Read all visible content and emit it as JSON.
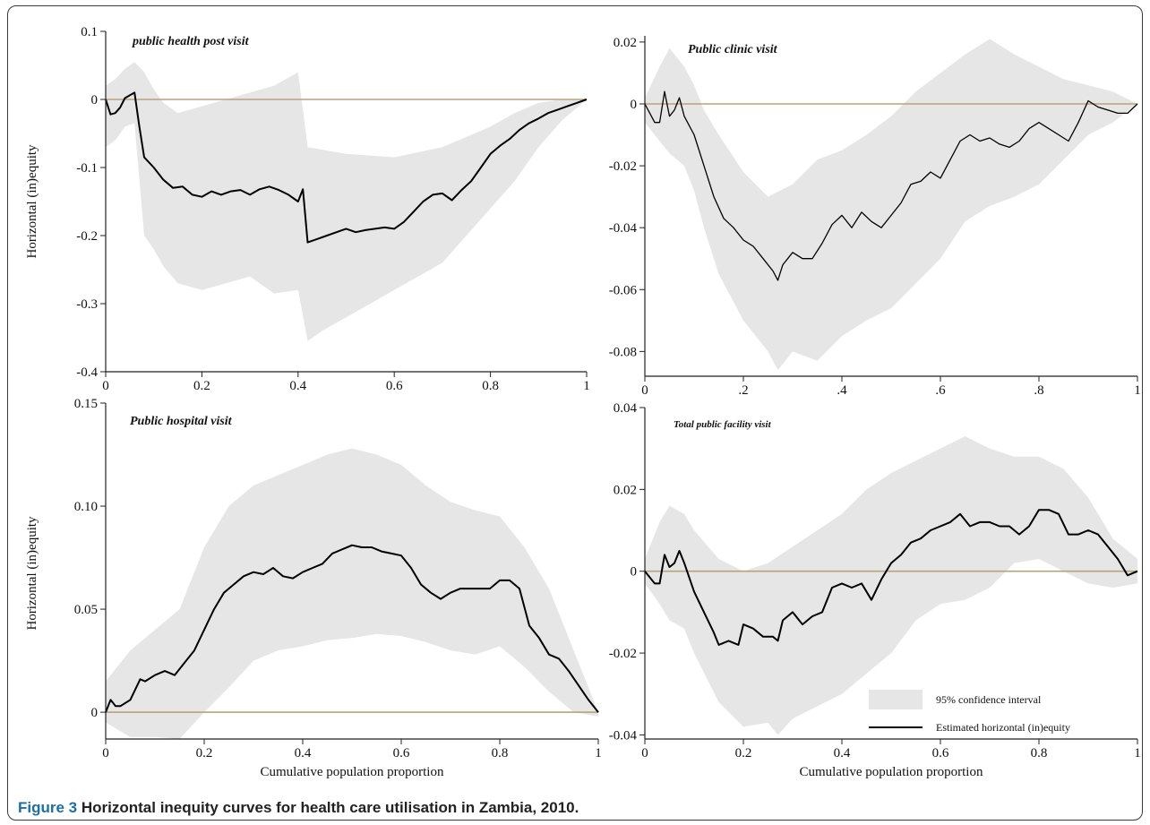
{
  "caption": {
    "label": "Figure 3",
    "text": "Horizontal inequity curves for health care utilisation in Zambia, 2010."
  },
  "colors": {
    "band": "#e6e6e6",
    "line": "#000000",
    "zero_line": "#b5a37a",
    "axis": "#222222",
    "caption_accent": "#1a6fa8"
  },
  "legend": {
    "band_label": "95% confidence interval",
    "line_label": "Estimated horizontal (in)equity",
    "placement": "bottom-right of panel 4"
  },
  "chart_data": [
    {
      "type": "line",
      "panel": "top-left",
      "title": "public health post visit",
      "xlabel": "",
      "ylabel": "Horizontal (in)equity",
      "xlim": [
        0,
        1
      ],
      "ylim": [
        -0.4,
        0.1
      ],
      "xticks": [
        "0",
        "0.2",
        "0.4",
        "0.6",
        "0.8",
        "1"
      ],
      "xtick_values": [
        0,
        0.2,
        0.4,
        0.6,
        0.8,
        1
      ],
      "yticks": [
        "-0.4",
        "-0.3",
        "-0.2",
        "-0.1",
        "0",
        "0.1"
      ],
      "ytick_values": [
        -0.4,
        -0.3,
        -0.2,
        -0.1,
        0,
        0.1
      ],
      "zero_line": true,
      "series": [
        {
          "role": "estimate",
          "x": [
            0,
            0.01,
            0.02,
            0.03,
            0.04,
            0.06,
            0.07,
            0.08,
            0.1,
            0.12,
            0.14,
            0.16,
            0.18,
            0.2,
            0.22,
            0.24,
            0.26,
            0.28,
            0.3,
            0.32,
            0.34,
            0.36,
            0.38,
            0.4,
            0.41,
            0.42,
            0.44,
            0.46,
            0.48,
            0.5,
            0.52,
            0.54,
            0.56,
            0.58,
            0.6,
            0.62,
            0.64,
            0.66,
            0.68,
            0.7,
            0.72,
            0.74,
            0.76,
            0.78,
            0.8,
            0.82,
            0.84,
            0.86,
            0.88,
            0.9,
            0.92,
            0.94,
            0.96,
            0.98,
            1.0
          ],
          "y": [
            0,
            -0.022,
            -0.02,
            -0.012,
            0.002,
            0.01,
            -0.04,
            -0.085,
            -0.1,
            -0.118,
            -0.13,
            -0.128,
            -0.14,
            -0.143,
            -0.135,
            -0.14,
            -0.135,
            -0.133,
            -0.14,
            -0.132,
            -0.128,
            -0.133,
            -0.14,
            -0.15,
            -0.132,
            -0.21,
            -0.205,
            -0.2,
            -0.195,
            -0.19,
            -0.195,
            -0.192,
            -0.19,
            -0.188,
            -0.19,
            -0.18,
            -0.165,
            -0.15,
            -0.14,
            -0.138,
            -0.148,
            -0.133,
            -0.12,
            -0.1,
            -0.08,
            -0.068,
            -0.058,
            -0.045,
            -0.035,
            -0.028,
            -0.02,
            -0.015,
            -0.01,
            -0.005,
            0
          ]
        },
        {
          "role": "ci_upper",
          "x": [
            0,
            0.02,
            0.04,
            0.06,
            0.08,
            0.1,
            0.12,
            0.15,
            0.2,
            0.25,
            0.3,
            0.35,
            0.4,
            0.42,
            0.5,
            0.6,
            0.7,
            0.8,
            0.85,
            0.9,
            0.95,
            1.0
          ],
          "y": [
            0.02,
            0.03,
            0.045,
            0.055,
            0.04,
            0.015,
            -0.005,
            -0.02,
            -0.01,
            0.0,
            0.01,
            0.02,
            0.04,
            -0.07,
            -0.08,
            -0.085,
            -0.07,
            -0.04,
            -0.02,
            -0.005,
            0.0,
            0
          ]
        },
        {
          "role": "ci_lower",
          "x": [
            0,
            0.02,
            0.04,
            0.06,
            0.08,
            0.1,
            0.12,
            0.15,
            0.2,
            0.25,
            0.3,
            0.35,
            0.4,
            0.42,
            0.45,
            0.5,
            0.55,
            0.6,
            0.7,
            0.8,
            0.85,
            0.9,
            0.95,
            1.0
          ],
          "y": [
            -0.07,
            -0.06,
            -0.04,
            -0.035,
            -0.2,
            -0.22,
            -0.245,
            -0.27,
            -0.28,
            -0.27,
            -0.26,
            -0.285,
            -0.28,
            -0.355,
            -0.34,
            -0.32,
            -0.3,
            -0.28,
            -0.24,
            -0.16,
            -0.12,
            -0.07,
            -0.03,
            0
          ]
        }
      ]
    },
    {
      "type": "line",
      "panel": "top-right",
      "title": "Public clinic visit",
      "xlabel": "",
      "ylabel": "",
      "xlim": [
        0,
        1
      ],
      "ylim": [
        -0.088,
        0.022
      ],
      "xticks": [
        "0",
        ".2",
        ".4",
        ".6",
        ".8",
        "1"
      ],
      "xtick_values": [
        0,
        0.2,
        0.4,
        0.6,
        0.8,
        1
      ],
      "yticks": [
        "-0.08",
        "-0.06",
        "-0.04",
        "-0.02",
        "0",
        "0.02"
      ],
      "ytick_values": [
        -0.08,
        -0.06,
        -0.04,
        -0.02,
        0,
        0.02
      ],
      "zero_line": true,
      "series": [
        {
          "role": "estimate",
          "x": [
            0,
            0.02,
            0.03,
            0.04,
            0.05,
            0.06,
            0.07,
            0.08,
            0.1,
            0.12,
            0.14,
            0.16,
            0.18,
            0.2,
            0.22,
            0.24,
            0.26,
            0.27,
            0.28,
            0.3,
            0.32,
            0.34,
            0.36,
            0.38,
            0.4,
            0.42,
            0.44,
            0.46,
            0.48,
            0.5,
            0.52,
            0.54,
            0.56,
            0.58,
            0.6,
            0.62,
            0.64,
            0.66,
            0.68,
            0.7,
            0.72,
            0.74,
            0.76,
            0.78,
            0.8,
            0.82,
            0.84,
            0.86,
            0.88,
            0.9,
            0.92,
            0.94,
            0.96,
            0.98,
            1.0
          ],
          "y": [
            0,
            -0.006,
            -0.006,
            0.004,
            -0.004,
            -0.002,
            0.002,
            -0.004,
            -0.01,
            -0.02,
            -0.03,
            -0.037,
            -0.04,
            -0.044,
            -0.046,
            -0.05,
            -0.054,
            -0.057,
            -0.052,
            -0.048,
            -0.05,
            -0.05,
            -0.045,
            -0.039,
            -0.036,
            -0.04,
            -0.035,
            -0.038,
            -0.04,
            -0.036,
            -0.032,
            -0.026,
            -0.025,
            -0.022,
            -0.024,
            -0.018,
            -0.012,
            -0.01,
            -0.012,
            -0.011,
            -0.013,
            -0.014,
            -0.012,
            -0.008,
            -0.006,
            -0.008,
            -0.01,
            -0.012,
            -0.006,
            0.001,
            -0.001,
            -0.002,
            -0.003,
            -0.003,
            0
          ]
        },
        {
          "role": "ci_upper",
          "x": [
            0,
            0.03,
            0.05,
            0.08,
            0.1,
            0.12,
            0.15,
            0.2,
            0.25,
            0.3,
            0.35,
            0.4,
            0.45,
            0.5,
            0.55,
            0.6,
            0.65,
            0.7,
            0.75,
            0.8,
            0.85,
            0.9,
            0.95,
            1.0
          ],
          "y": [
            0.002,
            0.012,
            0.018,
            0.012,
            0.006,
            -0.002,
            -0.01,
            -0.022,
            -0.03,
            -0.026,
            -0.018,
            -0.015,
            -0.01,
            -0.004,
            0.004,
            0.01,
            0.016,
            0.021,
            0.016,
            0.012,
            0.008,
            0.006,
            0.004,
            0
          ]
        },
        {
          "role": "ci_lower",
          "x": [
            0,
            0.03,
            0.05,
            0.08,
            0.1,
            0.12,
            0.15,
            0.2,
            0.25,
            0.27,
            0.3,
            0.35,
            0.4,
            0.45,
            0.5,
            0.55,
            0.6,
            0.65,
            0.7,
            0.75,
            0.8,
            0.85,
            0.9,
            0.95,
            1.0
          ],
          "y": [
            -0.006,
            -0.012,
            -0.016,
            -0.02,
            -0.028,
            -0.04,
            -0.055,
            -0.07,
            -0.08,
            -0.086,
            -0.08,
            -0.083,
            -0.075,
            -0.07,
            -0.066,
            -0.058,
            -0.05,
            -0.038,
            -0.033,
            -0.03,
            -0.026,
            -0.018,
            -0.01,
            -0.006,
            0
          ]
        }
      ]
    },
    {
      "type": "line",
      "panel": "bottom-left",
      "title": "Public hospital visit",
      "xlabel": "Cumulative population proportion",
      "ylabel": "Horizontal (in)equity",
      "xlim": [
        0,
        1
      ],
      "ylim": [
        -0.013,
        0.15
      ],
      "xticks": [
        "0",
        "0.2",
        "0.4",
        "0.6",
        "0.8",
        "1"
      ],
      "xtick_values": [
        0,
        0.2,
        0.4,
        0.6,
        0.8,
        1
      ],
      "yticks": [
        "0",
        "0.05",
        "0.10",
        "0.15"
      ],
      "ytick_values": [
        0,
        0.05,
        0.1,
        0.15
      ],
      "zero_line": true,
      "series": [
        {
          "role": "estimate",
          "x": [
            0,
            0.01,
            0.02,
            0.03,
            0.05,
            0.07,
            0.08,
            0.1,
            0.12,
            0.14,
            0.16,
            0.18,
            0.2,
            0.22,
            0.24,
            0.26,
            0.28,
            0.3,
            0.32,
            0.34,
            0.36,
            0.38,
            0.4,
            0.42,
            0.44,
            0.46,
            0.48,
            0.5,
            0.52,
            0.54,
            0.56,
            0.58,
            0.6,
            0.62,
            0.64,
            0.66,
            0.68,
            0.7,
            0.72,
            0.74,
            0.76,
            0.78,
            0.8,
            0.82,
            0.84,
            0.86,
            0.88,
            0.9,
            0.92,
            0.94,
            0.96,
            0.98,
            1.0
          ],
          "y": [
            0,
            0.006,
            0.003,
            0.003,
            0.006,
            0.016,
            0.015,
            0.018,
            0.02,
            0.018,
            0.024,
            0.03,
            0.04,
            0.05,
            0.058,
            0.062,
            0.066,
            0.068,
            0.067,
            0.07,
            0.066,
            0.065,
            0.068,
            0.07,
            0.072,
            0.077,
            0.079,
            0.081,
            0.08,
            0.08,
            0.078,
            0.077,
            0.076,
            0.07,
            0.062,
            0.058,
            0.055,
            0.058,
            0.06,
            0.06,
            0.06,
            0.06,
            0.064,
            0.064,
            0.06,
            0.042,
            0.036,
            0.028,
            0.026,
            0.02,
            0.013,
            0.006,
            0
          ]
        },
        {
          "role": "ci_upper",
          "x": [
            0,
            0.05,
            0.1,
            0.15,
            0.2,
            0.25,
            0.3,
            0.35,
            0.4,
            0.45,
            0.5,
            0.55,
            0.6,
            0.65,
            0.7,
            0.75,
            0.8,
            0.85,
            0.9,
            0.95,
            1.0
          ],
          "y": [
            0.015,
            0.03,
            0.04,
            0.05,
            0.08,
            0.1,
            0.11,
            0.115,
            0.12,
            0.125,
            0.128,
            0.125,
            0.12,
            0.11,
            0.102,
            0.098,
            0.095,
            0.08,
            0.06,
            0.03,
            0
          ]
        },
        {
          "role": "ci_lower",
          "x": [
            0,
            0.05,
            0.1,
            0.15,
            0.2,
            0.25,
            0.3,
            0.35,
            0.4,
            0.45,
            0.5,
            0.55,
            0.6,
            0.65,
            0.7,
            0.75,
            0.8,
            0.85,
            0.9,
            0.95,
            1.0
          ],
          "y": [
            -0.005,
            -0.012,
            -0.012,
            -0.013,
            0.0,
            0.012,
            0.025,
            0.03,
            0.032,
            0.035,
            0.036,
            0.038,
            0.037,
            0.034,
            0.03,
            0.028,
            0.032,
            0.022,
            0.01,
            0.0,
            -0.002
          ]
        }
      ]
    },
    {
      "type": "line",
      "panel": "bottom-right",
      "title": "Total public facility visit",
      "xlabel": "Cumulative population proportion",
      "ylabel": "",
      "xlim": [
        0,
        1
      ],
      "ylim": [
        -0.041,
        0.04
      ],
      "xticks": [
        "0",
        "0.2",
        "0.4",
        "0.6",
        "0.8",
        "1"
      ],
      "xtick_values": [
        0,
        0.2,
        0.4,
        0.6,
        0.8,
        1
      ],
      "yticks": [
        "-0.04",
        "-0.02",
        "0",
        "0.02",
        "0.04"
      ],
      "ytick_values": [
        -0.04,
        -0.02,
        0,
        0.02,
        0.04
      ],
      "zero_line": true,
      "series": [
        {
          "role": "estimate",
          "x": [
            0,
            0.02,
            0.03,
            0.04,
            0.05,
            0.06,
            0.07,
            0.08,
            0.1,
            0.12,
            0.14,
            0.15,
            0.17,
            0.19,
            0.2,
            0.22,
            0.24,
            0.26,
            0.27,
            0.28,
            0.3,
            0.32,
            0.34,
            0.36,
            0.38,
            0.4,
            0.42,
            0.44,
            0.46,
            0.48,
            0.5,
            0.52,
            0.54,
            0.56,
            0.58,
            0.6,
            0.62,
            0.64,
            0.66,
            0.68,
            0.7,
            0.72,
            0.74,
            0.76,
            0.78,
            0.8,
            0.82,
            0.84,
            0.86,
            0.88,
            0.9,
            0.92,
            0.94,
            0.96,
            0.98,
            1.0
          ],
          "y": [
            0,
            -0.003,
            -0.003,
            0.004,
            0.001,
            0.002,
            0.005,
            0.002,
            -0.005,
            -0.01,
            -0.015,
            -0.018,
            -0.017,
            -0.018,
            -0.013,
            -0.014,
            -0.016,
            -0.016,
            -0.017,
            -0.012,
            -0.01,
            -0.013,
            -0.011,
            -0.01,
            -0.004,
            -0.003,
            -0.004,
            -0.003,
            -0.007,
            -0.002,
            0.002,
            0.004,
            0.007,
            0.008,
            0.01,
            0.011,
            0.012,
            0.014,
            0.011,
            0.012,
            0.012,
            0.011,
            0.011,
            0.009,
            0.011,
            0.015,
            0.015,
            0.014,
            0.009,
            0.009,
            0.01,
            0.009,
            0.006,
            0.003,
            -0.001,
            0
          ]
        },
        {
          "role": "ci_upper",
          "x": [
            0,
            0.03,
            0.05,
            0.08,
            0.1,
            0.15,
            0.2,
            0.25,
            0.3,
            0.35,
            0.4,
            0.45,
            0.5,
            0.55,
            0.6,
            0.65,
            0.7,
            0.75,
            0.8,
            0.85,
            0.9,
            0.95,
            1.0
          ],
          "y": [
            0.003,
            0.012,
            0.016,
            0.014,
            0.01,
            0.003,
            0.0,
            0.002,
            0.006,
            0.01,
            0.014,
            0.02,
            0.024,
            0.027,
            0.03,
            0.033,
            0.03,
            0.028,
            0.028,
            0.025,
            0.018,
            0.008,
            0.003
          ]
        },
        {
          "role": "ci_lower",
          "x": [
            0,
            0.03,
            0.05,
            0.08,
            0.1,
            0.15,
            0.2,
            0.25,
            0.27,
            0.3,
            0.35,
            0.4,
            0.45,
            0.5,
            0.55,
            0.6,
            0.65,
            0.7,
            0.75,
            0.8,
            0.85,
            0.9,
            0.95,
            1.0
          ],
          "y": [
            -0.003,
            -0.008,
            -0.012,
            -0.014,
            -0.02,
            -0.032,
            -0.038,
            -0.037,
            -0.04,
            -0.036,
            -0.033,
            -0.03,
            -0.025,
            -0.02,
            -0.012,
            -0.008,
            -0.007,
            -0.004,
            0.002,
            0.003,
            0.0,
            -0.003,
            -0.004,
            -0.003
          ]
        }
      ]
    }
  ]
}
